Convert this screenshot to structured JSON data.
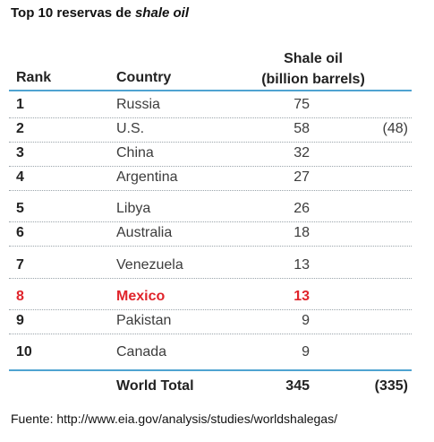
{
  "title": {
    "prefix": "Top 10 reservas de ",
    "emphasis": "shale oil"
  },
  "headers": {
    "rank": "Rank",
    "country": "Country",
    "shale_line1": "Shale oil",
    "shale_line2": "(billion barrels)"
  },
  "rows": [
    {
      "rank": "1",
      "country": "Russia",
      "value": "75",
      "alt": ""
    },
    {
      "rank": "2",
      "country": "U.S.",
      "value": "58",
      "alt": "(48)"
    },
    {
      "rank": "3",
      "country": "China",
      "value": "32",
      "alt": ""
    },
    {
      "rank": "4",
      "country": "Argentina",
      "value": "27",
      "alt": ""
    },
    {
      "rank": "5",
      "country": "Libya",
      "value": "26",
      "alt": ""
    },
    {
      "rank": "6",
      "country": "Australia",
      "value": "18",
      "alt": ""
    },
    {
      "rank": "7",
      "country": "Venezuela",
      "value": "13",
      "alt": ""
    },
    {
      "rank": "8",
      "country": "Mexico",
      "value": "13",
      "alt": ""
    },
    {
      "rank": "9",
      "country": "Pakistan",
      "value": "9",
      "alt": ""
    },
    {
      "rank": "10",
      "country": "Canada",
      "value": "9",
      "alt": ""
    }
  ],
  "total": {
    "label": "World Total",
    "value": "345",
    "alt": "(335)"
  },
  "source": "Fuente: http://www.eia.gov/analysis/studies/worldshalegas/",
  "colors": {
    "highlight": "#e0242b",
    "rule": "#4fa3d1"
  }
}
